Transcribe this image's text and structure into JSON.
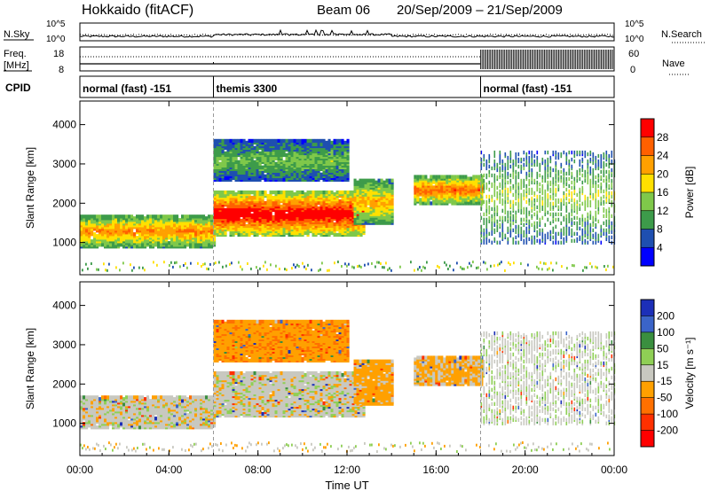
{
  "header": {
    "title": "Hokkaido (fitACF)",
    "beam": "Beam 06",
    "dates": "20/Sep/2009 – 21/Sep/2009"
  },
  "strip_labels": {
    "nsky": "N.Sky",
    "nsearch": "N.Search",
    "freq_line1": "Freq.",
    "freq_line2": "[MHz]",
    "nave": "Nave",
    "cpid": "CPID",
    "log_hi": "10^5",
    "log_lo": "10^0",
    "freq_hi": "18",
    "freq_lo": "8",
    "nave_hi": "60",
    "nave_lo": "0"
  },
  "cpid_segments": [
    {
      "label": "normal (fast) -151",
      "start_hour": 0
    },
    {
      "label": "themis 3300",
      "start_hour": 6
    },
    {
      "label": "normal (fast) -151",
      "start_hour": 18
    }
  ],
  "x_axis": {
    "label": "Time UT",
    "ticks": [
      "00:00",
      "04:00",
      "08:00",
      "12:00",
      "16:00",
      "20:00",
      "00:00"
    ]
  },
  "panels": [
    {
      "ylabel": "Slant Range [km]",
      "yticks": [
        "1000",
        "2000",
        "3000",
        "4000"
      ],
      "colorbar_label": "Power [dB]",
      "colorbar_ticks": [
        "28",
        "24",
        "20",
        "16",
        "12",
        "8",
        "4"
      ],
      "colors": [
        "#0000ff",
        "#1e4fb0",
        "#3d9b4a",
        "#7fc84a",
        "#ffe000",
        "#ffa000",
        "#ff6000",
        "#ff0000"
      ]
    },
    {
      "ylabel": "Slant Range [km]",
      "yticks": [
        "1000",
        "2000",
        "3000",
        "4000"
      ],
      "colorbar_label": "Velocity [m s⁻¹]",
      "colorbar_ticks": [
        "200",
        "100",
        "50",
        "15",
        "-15",
        "-50",
        "-100",
        "-200"
      ],
      "colors": [
        "#1c2fb8",
        "#3b64c8",
        "#3a8f3f",
        "#8fcf55",
        "#c8c8c0",
        "#ffa000",
        "#ff7000",
        "#ff3000",
        "#ff0000"
      ]
    }
  ],
  "chart_data": [
    {
      "type": "heatmap",
      "title": "Power",
      "xlabel": "Time UT",
      "ylabel": "Slant Range [km]",
      "x_range_hours": [
        0,
        24
      ],
      "ylim": [
        180,
        4600
      ],
      "zlabel": "Power [dB]",
      "zlim": [
        0,
        32
      ],
      "regions": [
        {
          "t": [
            0,
            6
          ],
          "range_km": [
            900,
            1700
          ],
          "power_db": 22
        },
        {
          "t": [
            6,
            12.8
          ],
          "range_km": [
            1200,
            2300
          ],
          "power_db": 30
        },
        {
          "t": [
            6,
            12
          ],
          "range_km": [
            2600,
            3600
          ],
          "power_db": 12
        },
        {
          "t": [
            12.3,
            14
          ],
          "range_km": [
            1500,
            2600
          ],
          "power_db": 20
        },
        {
          "t": [
            15,
            18
          ],
          "range_km": [
            2000,
            2700
          ],
          "power_db": 24
        },
        {
          "t": [
            18,
            24
          ],
          "range_km": [
            1000,
            3300
          ],
          "power_db": 14
        }
      ]
    },
    {
      "type": "heatmap",
      "title": "Velocity",
      "xlabel": "Time UT",
      "ylabel": "Slant Range [km]",
      "x_range_hours": [
        0,
        24
      ],
      "ylim": [
        180,
        4600
      ],
      "zlabel": "Velocity [m s⁻¹]",
      "zlim": [
        -200,
        200
      ],
      "regions": [
        {
          "t": [
            0,
            6
          ],
          "range_km": [
            900,
            1700
          ],
          "velocity_ms": 0
        },
        {
          "t": [
            6,
            12.8
          ],
          "range_km": [
            1200,
            2300
          ],
          "velocity_ms": 0
        },
        {
          "t": [
            6,
            12
          ],
          "range_km": [
            2600,
            3600
          ],
          "velocity_ms": -40
        },
        {
          "t": [
            12.3,
            14
          ],
          "range_km": [
            1500,
            2600
          ],
          "velocity_ms": -30
        },
        {
          "t": [
            15,
            18
          ],
          "range_km": [
            2000,
            2700
          ],
          "velocity_ms": -20
        },
        {
          "t": [
            18,
            24
          ],
          "range_km": [
            1000,
            3300
          ],
          "velocity_ms": 5
        }
      ]
    }
  ]
}
